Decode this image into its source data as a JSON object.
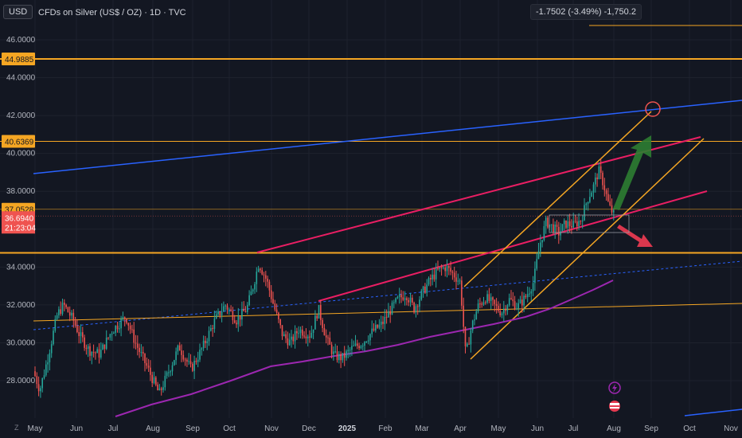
{
  "header": {
    "currency_button": "USD",
    "title": "CFDs on Silver (US$ / OZ) · 1D · TVC",
    "change_readout": "-1.7502 (-3.49%) -1,750.2"
  },
  "axis_badges": {
    "level_high": "44.9885",
    "level_mid": "40.6369",
    "level_low": "37.0528",
    "last_price": "36.6940",
    "countdown": "21:23:04"
  },
  "colors": {
    "background": "#131722",
    "orange": "#f5a623",
    "pink": "#e91e63",
    "blue": "#2962ff",
    "purple": "#9c27b0",
    "up": "#26a69a",
    "down": "#ef5350",
    "green_arrow": "#2e7d32",
    "red_arrow": "#e53950"
  },
  "chart_data": {
    "type": "candlestick",
    "symbol": "CFDs on Silver (US$ / OZ)",
    "interval": "1D",
    "source": "TVC",
    "y_ticks": [
      "46.0000",
      "44.0000",
      "42.0000",
      "40.0000",
      "38.0000",
      "34.0000",
      "32.0000",
      "30.0000",
      "28.0000"
    ],
    "x_ticks": [
      "May",
      "Jun",
      "Jul",
      "Aug",
      "Sep",
      "Oct",
      "Nov",
      "Dec",
      "2025",
      "Feb",
      "Mar",
      "Apr",
      "May",
      "Jun",
      "Jul",
      "Aug",
      "Sep",
      "Oct",
      "Nov"
    ],
    "ylim": [
      26.5,
      47.5
    ],
    "horizontal_levels": [
      44.9885,
      40.6369,
      37.0528,
      34.75
    ],
    "last_price": 36.694,
    "bottom_icons": [
      "lightning-icon",
      "us-flag-icon"
    ]
  }
}
